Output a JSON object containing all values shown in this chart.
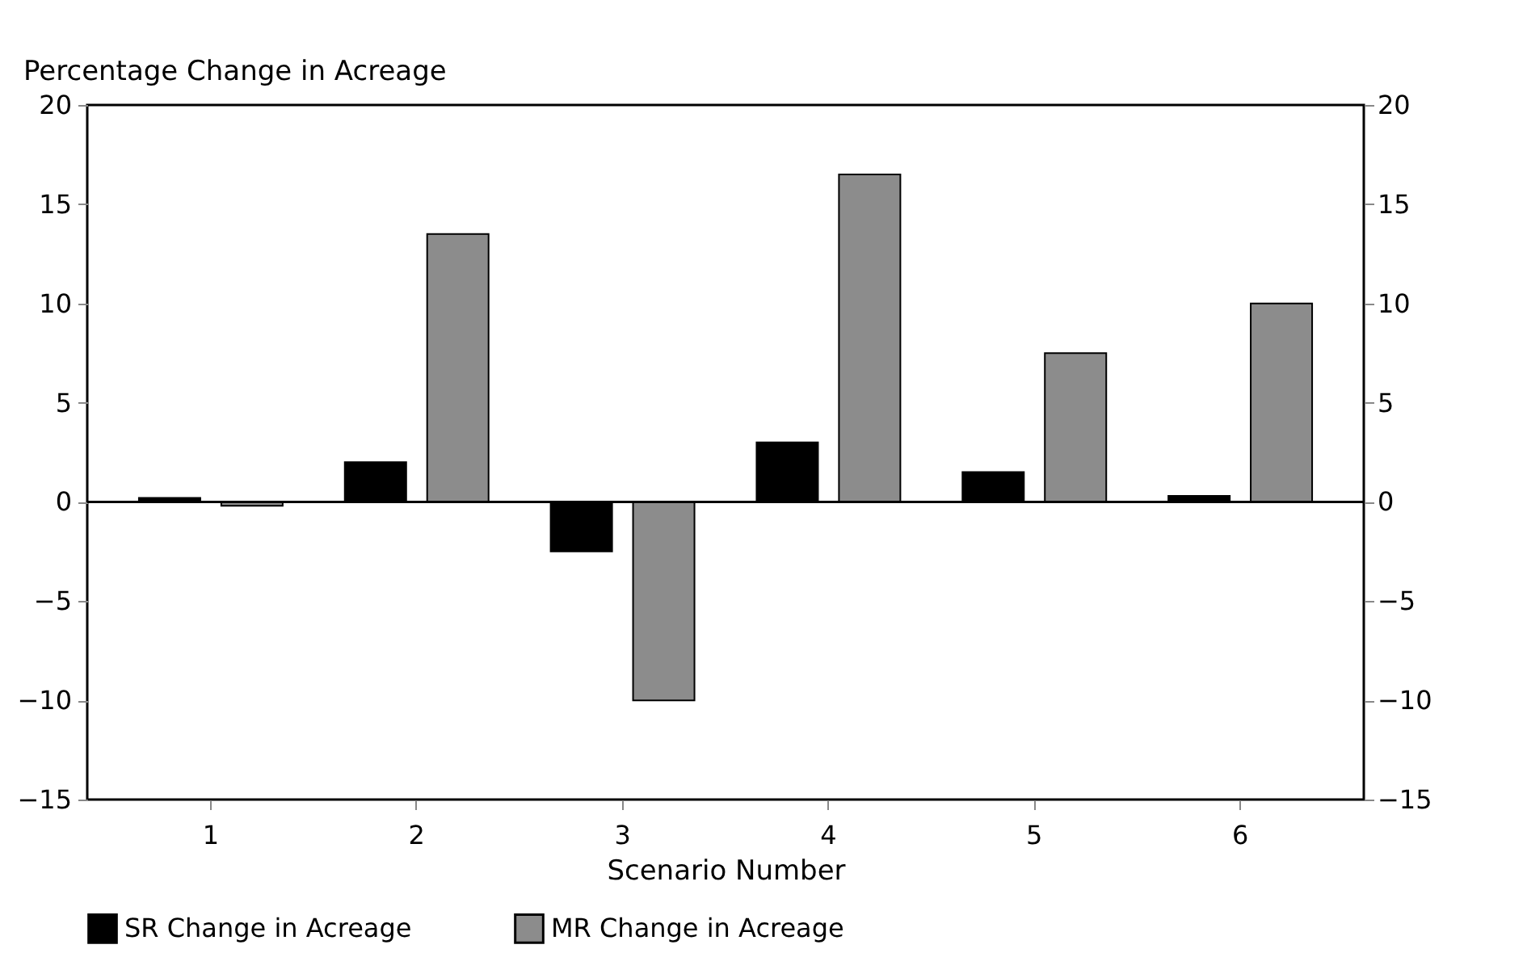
{
  "chart_data": {
    "type": "bar",
    "ylabel": "Percentage Change in Acreage",
    "xlabel": "Scenario Number",
    "categories": [
      "1",
      "2",
      "3",
      "4",
      "5",
      "6"
    ],
    "series": [
      {
        "name": "SR Change in Acreage",
        "color": "#000000",
        "values": [
          0.2,
          2,
          -2.5,
          3,
          1.5,
          0.3
        ]
      },
      {
        "name": "MR Change in Acreage",
        "color": "#8c8c8c",
        "values": [
          -0.2,
          13.5,
          -10,
          16.5,
          7.5,
          10
        ]
      }
    ],
    "ylim": [
      -15,
      20
    ],
    "yticks": [
      -15,
      -10,
      -5,
      0,
      5,
      10,
      15,
      20
    ],
    "y2lim": [
      -15,
      20
    ],
    "y2ticks": [
      -15,
      -10,
      -5,
      0,
      5,
      10,
      15,
      20
    ],
    "ref_lines": [
      {
        "axis": "y",
        "value": 0,
        "color": "#000000"
      }
    ],
    "grid": false,
    "legend": "bottom"
  }
}
